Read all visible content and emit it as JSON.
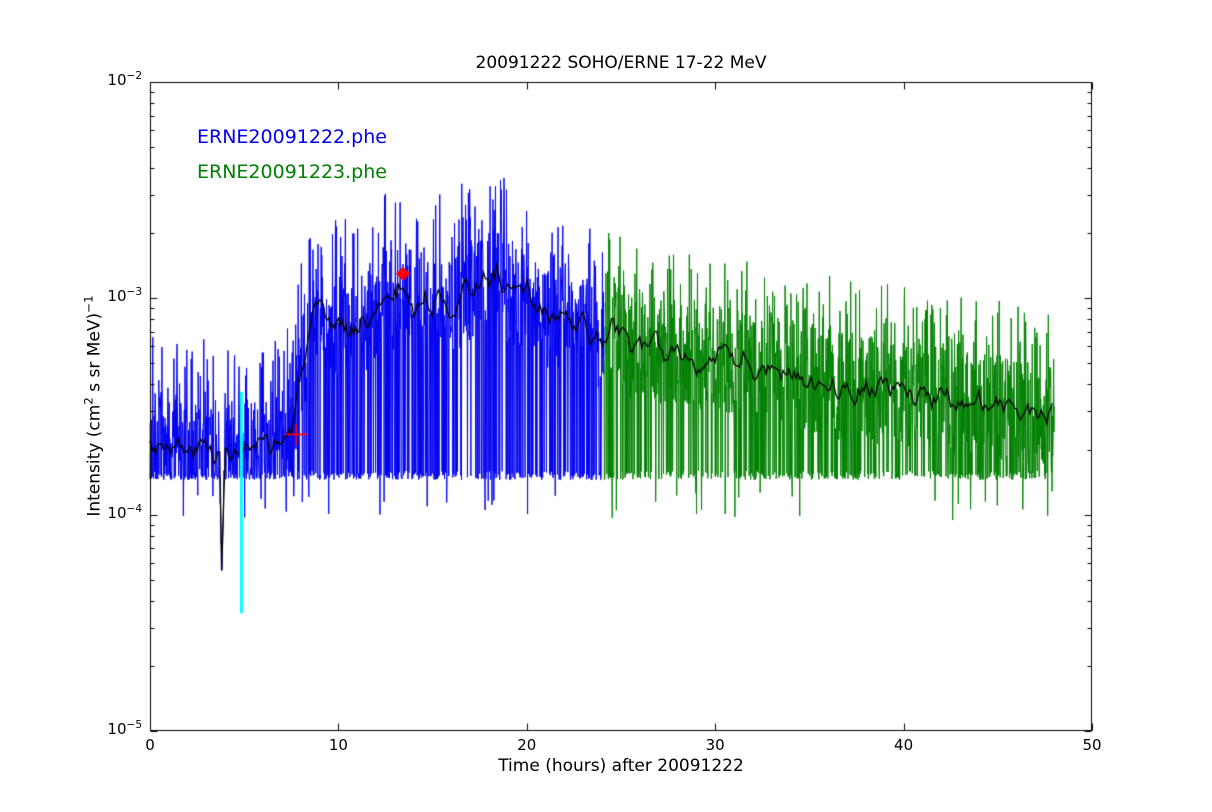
{
  "chart_data": {
    "type": "line",
    "title": "20091222 SOHO/ERNE 17-22 MeV",
    "xlabel": "Time (hours) after 20091222",
    "ylabel": "Intensity (cm²  s sr MeV)⁻¹",
    "ylabel_segments": [
      {
        "text": "Intensity (cm"
      },
      {
        "text": "2",
        "style": "sup"
      },
      {
        "text": "  s sr MeV)"
      },
      {
        "text": "−1",
        "style": "sup"
      }
    ],
    "x_axis": {
      "min": 0,
      "max": 50,
      "ticks": [
        0,
        10,
        20,
        30,
        40,
        50
      ],
      "tick_labels": [
        "0",
        "10",
        "20",
        "30",
        "40",
        "50"
      ],
      "minor_ticks": false
    },
    "y_axis": {
      "scale": "log",
      "min": 1e-05,
      "max": 0.01,
      "tick_exponents": [
        -2,
        -3,
        -4,
        -5
      ],
      "tick_labels": [
        {
          "base": "10",
          "exp": "−2"
        },
        {
          "base": "10",
          "exp": "−3"
        },
        {
          "base": "10",
          "exp": "−4"
        },
        {
          "base": "10",
          "exp": "−5"
        }
      ],
      "minor_ticks": true
    },
    "grid": false,
    "legend": {
      "position": "upper-left",
      "entries": [
        {
          "label": "ERNE20091222.phe",
          "color": "#0000ee"
        },
        {
          "label": "ERNE20091223.phe",
          "color": "#008000"
        }
      ]
    },
    "series": [
      {
        "name": "ERNE20091222.phe",
        "color": "#0000ee",
        "t_start": 0.0,
        "t_end": 24.1,
        "cadence_hours": 0.0167,
        "noise_floor": 0.000145,
        "deep_spike_prob": 0.26,
        "sub_floor_spike_prob": 0.015,
        "up_spike_prob": 0.08,
        "up_spike_decades": [
          0.28,
          0.5
        ],
        "jitter_decades": 0.25,
        "seed": 7
      },
      {
        "name": "ERNE20091223.phe",
        "color": "#008000",
        "t_start": 24.1,
        "t_end": 48.0,
        "cadence_hours": 0.0167,
        "noise_floor": 0.000145,
        "deep_spike_prob": 0.26,
        "sub_floor_spike_prob": 0.015,
        "up_spike_prob": 0.08,
        "up_spike_decades": [
          0.28,
          0.48
        ],
        "jitter_decades": 0.25,
        "seed": 13
      }
    ],
    "trend_line": {
      "name": "smoothed-average",
      "color": "#000000",
      "seed": 3,
      "points": [
        [
          0.0,
          0.00021
        ],
        [
          1.0,
          0.00022
        ],
        [
          2.0,
          0.00019
        ],
        [
          3.0,
          0.00021
        ],
        [
          3.7,
          0.00019
        ],
        [
          3.82,
          4.3e-05
        ],
        [
          3.95,
          0.00019
        ],
        [
          5.0,
          0.00019
        ],
        [
          6.0,
          0.0002
        ],
        [
          7.0,
          0.00022
        ],
        [
          7.6,
          0.00025
        ],
        [
          8.0,
          0.00045
        ],
        [
          8.6,
          0.00075
        ],
        [
          9.0,
          0.00085
        ],
        [
          9.6,
          0.0007
        ],
        [
          10.0,
          0.0008
        ],
        [
          10.6,
          0.0007
        ],
        [
          11.0,
          0.00075
        ],
        [
          11.6,
          0.00085
        ],
        [
          12.0,
          0.0008
        ],
        [
          12.4,
          0.0011
        ],
        [
          12.8,
          0.00095
        ],
        [
          13.4,
          0.00115
        ],
        [
          14.0,
          0.0009
        ],
        [
          14.6,
          0.001
        ],
        [
          15.0,
          0.00095
        ],
        [
          15.6,
          0.00105
        ],
        [
          16.0,
          0.0009
        ],
        [
          16.6,
          0.0011
        ],
        [
          17.0,
          0.00105
        ],
        [
          17.6,
          0.0013
        ],
        [
          18.0,
          0.0012
        ],
        [
          18.4,
          0.00135
        ],
        [
          19.0,
          0.0011
        ],
        [
          19.6,
          0.001
        ],
        [
          20.0,
          0.0011
        ],
        [
          20.6,
          0.0009
        ],
        [
          21.0,
          0.00085
        ],
        [
          21.6,
          0.00075
        ],
        [
          22.0,
          0.00085
        ],
        [
          22.6,
          0.0007
        ],
        [
          23.0,
          0.00075
        ],
        [
          23.6,
          0.00065
        ],
        [
          24.1,
          0.0006
        ],
        [
          24.5,
          0.00075
        ],
        [
          25.0,
          0.00068
        ],
        [
          25.5,
          0.0006
        ],
        [
          26.0,
          0.00065
        ],
        [
          26.5,
          0.00055
        ],
        [
          27.0,
          0.0006
        ],
        [
          27.5,
          0.00052
        ],
        [
          28.0,
          0.0006
        ],
        [
          28.5,
          0.00055
        ],
        [
          29.0,
          0.0005
        ],
        [
          29.5,
          0.00056
        ],
        [
          30.0,
          0.0005
        ],
        [
          30.5,
          0.00054
        ],
        [
          31.0,
          0.00048
        ],
        [
          31.5,
          0.00053
        ],
        [
          32.0,
          0.00047
        ],
        [
          32.5,
          0.00044
        ],
        [
          33.0,
          0.0005
        ],
        [
          33.5,
          0.00044
        ],
        [
          34.0,
          0.00047
        ],
        [
          34.5,
          0.00042
        ],
        [
          35.0,
          0.00045
        ],
        [
          35.5,
          0.0004
        ],
        [
          36.0,
          0.00044
        ],
        [
          36.5,
          0.00039
        ],
        [
          37.0,
          0.00042
        ],
        [
          37.5,
          0.00038
        ],
        [
          38.0,
          0.00041
        ],
        [
          38.5,
          0.00037
        ],
        [
          39.0,
          0.0004
        ],
        [
          39.5,
          0.00036
        ],
        [
          40.0,
          0.00039
        ],
        [
          40.5,
          0.00035
        ],
        [
          41.0,
          0.00038
        ],
        [
          41.5,
          0.00034
        ],
        [
          42.0,
          0.00037
        ],
        [
          42.5,
          0.00033
        ],
        [
          43.0,
          0.00036
        ],
        [
          43.5,
          0.00032
        ],
        [
          44.0,
          0.00034
        ],
        [
          44.5,
          0.00031
        ],
        [
          45.0,
          0.00033
        ],
        [
          45.5,
          0.0003
        ],
        [
          46.0,
          0.00032
        ],
        [
          46.5,
          0.00029
        ],
        [
          47.0,
          0.00031
        ],
        [
          47.5,
          0.00028
        ],
        [
          48.0,
          0.0003
        ]
      ]
    },
    "annotations": {
      "cyan_vline": {
        "t": 4.85,
        "v_min": 3.5e-05,
        "v_max": 0.00037,
        "color": "#00ffff"
      },
      "red_diamond": {
        "t": 13.43,
        "v": 0.0013,
        "color": "#ff0000"
      },
      "red_plus": {
        "t": 7.75,
        "v": 0.000235,
        "color": "#ff0000"
      }
    }
  }
}
